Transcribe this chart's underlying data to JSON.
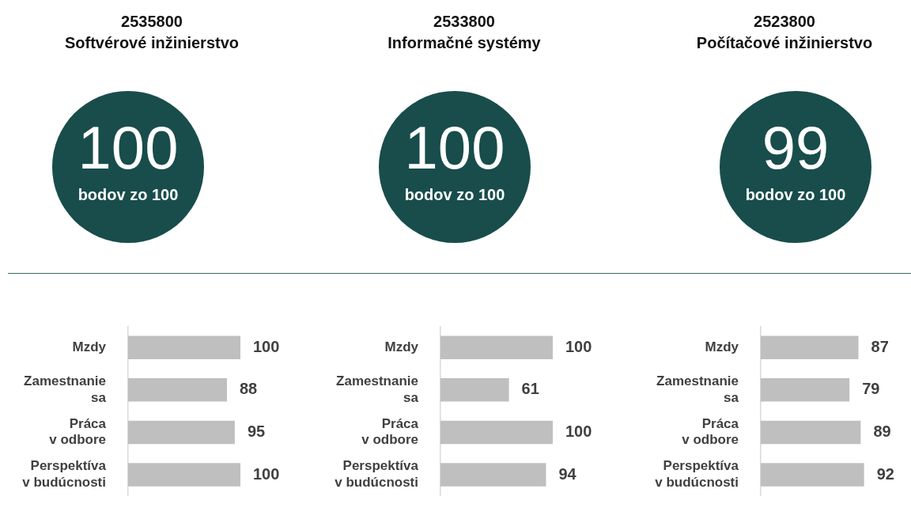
{
  "chart_data": [
    {
      "type": "bar",
      "orientation": "horizontal",
      "title": "2535800",
      "subtitle": "Softvérové inžinierstvo",
      "annotations": [
        "100",
        "bodov zo 100"
      ],
      "categories": [
        "Mzdy",
        "Zamestnanie sa",
        "Práca v odbore",
        "Perspektíva v budúcnosti"
      ],
      "values": [
        100,
        88,
        95,
        100
      ],
      "color": "#bfbfbf",
      "data_labels": true
    },
    {
      "type": "bar",
      "orientation": "horizontal",
      "title": "2533800",
      "subtitle": "Informačné systémy",
      "annotations": [
        "100",
        "bodov zo 100"
      ],
      "categories": [
        "Mzdy",
        "Zamestnanie sa",
        "Práca v odbore",
        "Perspektíva v budúcnosti"
      ],
      "values": [
        100,
        61,
        100,
        94
      ],
      "color": "#bfbfbf",
      "data_labels": true
    },
    {
      "type": "bar",
      "orientation": "horizontal",
      "title": "2523800",
      "subtitle": "Počítačové inžinierstvo",
      "annotations": [
        "99",
        "bodov zo 100"
      ],
      "categories": [
        "Mzdy",
        "Zamestnanie sa",
        "Práca v odbore",
        "Perspektíva v budúcnosti"
      ],
      "values": [
        87,
        79,
        89,
        92
      ],
      "color": "#bfbfbf",
      "data_labels": true
    }
  ]
}
